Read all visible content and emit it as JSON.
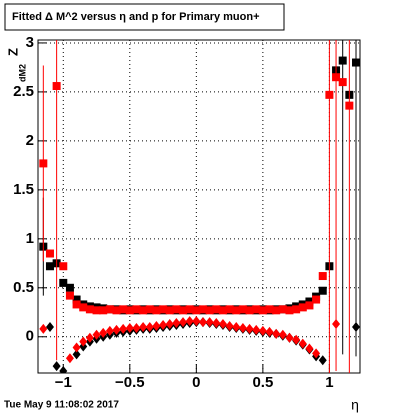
{
  "chart_data": {
    "type": "scatter",
    "title": "Fitted Δ M^2 versus η and p for Primary muon+",
    "y_label": {
      "main": "Z",
      "sub": "dM2"
    },
    "x_label": "η",
    "footer": "Tue May  9 11:08:02 2017",
    "grid": true,
    "xlim": [
      -1.19,
      1.23
    ],
    "ylim": [
      -0.37,
      3.03
    ],
    "xticks": [
      {
        "value": -1,
        "label": "−1"
      },
      {
        "value": -0.5,
        "label": "−0.5"
      },
      0,
      0.5,
      1
    ],
    "yticks": [
      0,
      0.5,
      1,
      1.5,
      2,
      2.5,
      3
    ],
    "x": [
      -1.15,
      -1.1,
      -1.05,
      -1,
      -0.95,
      -0.9,
      -0.85,
      -0.8,
      -0.75,
      -0.7,
      -0.65,
      -0.6,
      -0.55,
      -0.5,
      -0.45,
      -0.4,
      -0.35,
      -0.3,
      -0.25,
      -0.2,
      -0.15,
      -0.1,
      -0.05,
      0,
      0.05,
      0.1,
      0.15,
      0.2,
      0.25,
      0.3,
      0.35,
      0.4,
      0.45,
      0.5,
      0.55,
      0.6,
      0.65,
      0.7,
      0.75,
      0.8,
      0.85,
      0.9,
      0.95,
      1,
      1.05,
      1.1,
      1.15,
      1.2
    ],
    "series": [
      {
        "marker": "square",
        "color": "#000000",
        "values": [
          0.92,
          0.72,
          0.75,
          0.55,
          0.5,
          0.38,
          0.33,
          0.31,
          0.3,
          0.29,
          0.28,
          0.28,
          0.27,
          0.28,
          0.27,
          0.28,
          0.27,
          0.28,
          0.27,
          0.28,
          0.27,
          0.28,
          0.27,
          0.28,
          0.27,
          0.28,
          0.27,
          0.28,
          0.27,
          0.28,
          0.27,
          0.28,
          0.27,
          0.28,
          0.27,
          0.28,
          0.28,
          0.29,
          0.31,
          0.33,
          0.36,
          0.41,
          0.47,
          0.72,
          2.72,
          2.82,
          2.47,
          2.8
        ],
        "errors": [
          0.5,
          null,
          null,
          null,
          null,
          null,
          null,
          null,
          null,
          null,
          null,
          null,
          null,
          null,
          null,
          null,
          null,
          null,
          null,
          null,
          null,
          null,
          null,
          null,
          null,
          null,
          null,
          null,
          null,
          null,
          null,
          null,
          null,
          null,
          null,
          null,
          null,
          null,
          null,
          null,
          null,
          null,
          null,
          null,
          null,
          3.0,
          null,
          3.0
        ]
      },
      {
        "marker": "square",
        "color": "#ff0000",
        "values": [
          1.77,
          0.85,
          2.56,
          0.72,
          0.42,
          0.33,
          0.3,
          0.28,
          0.27,
          0.27,
          0.28,
          0.27,
          0.28,
          0.27,
          0.28,
          0.27,
          0.28,
          0.27,
          0.28,
          0.27,
          0.28,
          0.27,
          0.28,
          0.27,
          0.28,
          0.27,
          0.28,
          0.27,
          0.28,
          0.27,
          0.28,
          0.27,
          0.28,
          0.27,
          0.28,
          0.27,
          0.28,
          0.27,
          0.28,
          0.3,
          0.32,
          0.38,
          0.62,
          2.47,
          2.65,
          2.6,
          2.36,
          null
        ],
        "errors": [
          1.0,
          null,
          2.8,
          null,
          null,
          null,
          null,
          null,
          null,
          null,
          null,
          null,
          null,
          null,
          null,
          null,
          null,
          null,
          null,
          null,
          null,
          null,
          null,
          null,
          null,
          null,
          null,
          null,
          null,
          null,
          null,
          null,
          null,
          null,
          null,
          null,
          null,
          null,
          null,
          null,
          null,
          null,
          null,
          3.0,
          3.0,
          null,
          3.0,
          null
        ]
      },
      {
        "marker": "diamond",
        "color": "#000000",
        "values": [
          null,
          0.1,
          -0.3,
          -0.35,
          null,
          -0.18,
          -0.1,
          -0.05,
          -0.02,
          0.0,
          0.02,
          0.04,
          0.05,
          0.06,
          0.07,
          0.08,
          0.08,
          0.09,
          0.1,
          0.11,
          0.12,
          0.13,
          0.14,
          0.15,
          0.15,
          0.14,
          0.13,
          0.12,
          0.1,
          0.09,
          0.08,
          0.07,
          0.06,
          0.05,
          0.04,
          0.03,
          0.01,
          -0.01,
          -0.04,
          -0.08,
          -0.13,
          -0.2,
          -0.24,
          null,
          null,
          null,
          null,
          0.1
        ]
      },
      {
        "marker": "diamond",
        "color": "#ff0000",
        "values": [
          0.08,
          null,
          null,
          null,
          -0.22,
          -0.11,
          -0.05,
          -0.01,
          0.02,
          0.04,
          0.06,
          0.07,
          0.08,
          0.09,
          0.09,
          0.1,
          0.1,
          0.11,
          0.12,
          0.13,
          0.14,
          0.15,
          0.16,
          0.16,
          0.15,
          0.15,
          0.14,
          0.13,
          0.11,
          0.1,
          0.09,
          0.08,
          0.07,
          0.06,
          0.05,
          0.03,
          0.02,
          -0.01,
          -0.03,
          -0.07,
          -0.12,
          -0.17,
          null,
          null,
          0.13,
          null,
          null,
          null
        ]
      }
    ]
  }
}
